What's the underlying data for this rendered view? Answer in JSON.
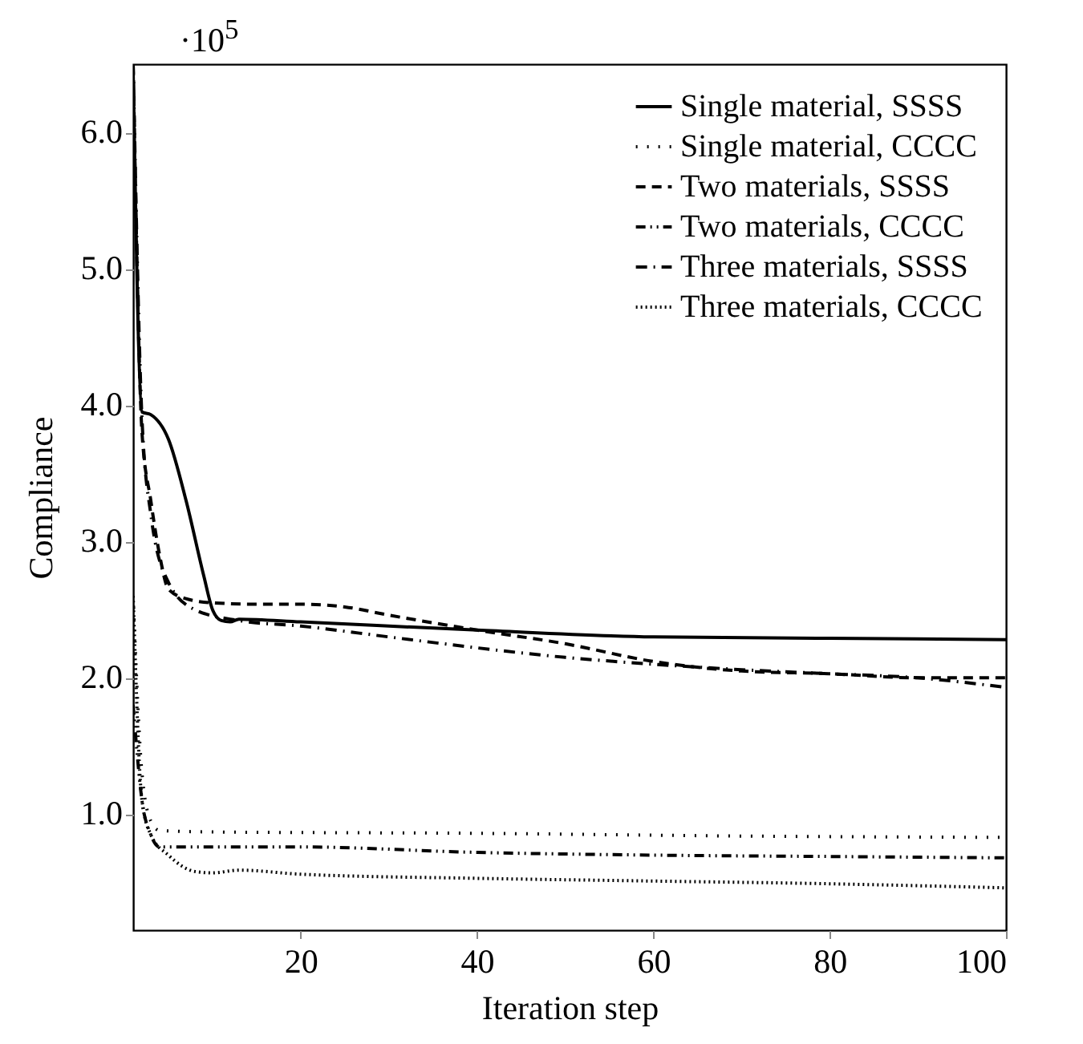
{
  "chart_data": {
    "type": "line",
    "xlabel": "Iteration step",
    "ylabel": "Compliance",
    "annotations": [
      "·10$^{5}$"
    ],
    "xlim": [
      1,
      100
    ],
    "xticks": [
      20,
      40,
      60,
      80,
      100
    ],
    "ylim": [
      0.15,
      6.5
    ],
    "yticks": [
      {
        "value": 1,
        "label": "1.0"
      },
      {
        "value": 2,
        "label": "2.0"
      },
      {
        "value": 3,
        "label": "3.0"
      },
      {
        "value": 4,
        "label": "4.0"
      },
      {
        "value": 5,
        "label": "5.0"
      },
      {
        "value": 6,
        "label": "6.0"
      }
    ],
    "legend": "top right",
    "grid": false,
    "marker": "none",
    "series": [
      {
        "name": "Single material, SSSS",
        "color": "#000000",
        "line_style": "solid",
        "x": [
          1,
          2,
          3,
          5,
          7,
          9,
          10,
          11,
          12,
          13,
          20,
          40,
          60,
          80,
          100
        ],
        "values": [
          6.45,
          3.95,
          3.93,
          3.75,
          3.3,
          2.75,
          2.5,
          2.42,
          2.41,
          2.43,
          2.41,
          2.35,
          2.3,
          2.29,
          2.28
        ]
      },
      {
        "name": "Single material, CCCC",
        "color": "#000000",
        "line_style": "dotted",
        "x": [
          1,
          2,
          3,
          4,
          10,
          40,
          70,
          100
        ],
        "values": [
          2.6,
          1.3,
          0.95,
          0.88,
          0.87,
          0.86,
          0.84,
          0.83
        ]
      },
      {
        "name": "Two materials, SSSS",
        "color": "#000000",
        "line_style": "dashed",
        "x": [
          1,
          2,
          3,
          4,
          5,
          7,
          10,
          15,
          20,
          25,
          30,
          40,
          50,
          60,
          70,
          80,
          90,
          100
        ],
        "values": [
          6.5,
          3.8,
          3.3,
          2.9,
          2.65,
          2.58,
          2.55,
          2.54,
          2.54,
          2.52,
          2.46,
          2.35,
          2.25,
          2.12,
          2.05,
          2.03,
          2.0,
          2.0
        ]
      },
      {
        "name": "Two materials, CCCC",
        "color": "#000000",
        "line_style": "dashdotdot",
        "x": [
          1,
          2,
          3,
          4,
          20,
          40,
          60,
          80,
          100
        ],
        "values": [
          1.8,
          1.1,
          0.85,
          0.76,
          0.76,
          0.72,
          0.7,
          0.69,
          0.68
        ]
      },
      {
        "name": "Three materials, SSSS",
        "color": "#000000",
        "line_style": "dashdot",
        "x": [
          1,
          2,
          3,
          5,
          8,
          13,
          20,
          30,
          40,
          50,
          60,
          70,
          80,
          90,
          100
        ],
        "values": [
          6.5,
          3.9,
          3.2,
          2.7,
          2.5,
          2.42,
          2.38,
          2.3,
          2.22,
          2.15,
          2.1,
          2.06,
          2.03,
          2.0,
          1.93
        ]
      },
      {
        "name": "Three materials, CCCC",
        "color": "#000000",
        "line_style": "densely dotted",
        "x": [
          1,
          2,
          3,
          5,
          8,
          10,
          13,
          20,
          40,
          60,
          80,
          100
        ],
        "values": [
          2.6,
          1.1,
          0.85,
          0.7,
          0.58,
          0.57,
          0.59,
          0.56,
          0.53,
          0.51,
          0.49,
          0.46
        ]
      }
    ]
  }
}
